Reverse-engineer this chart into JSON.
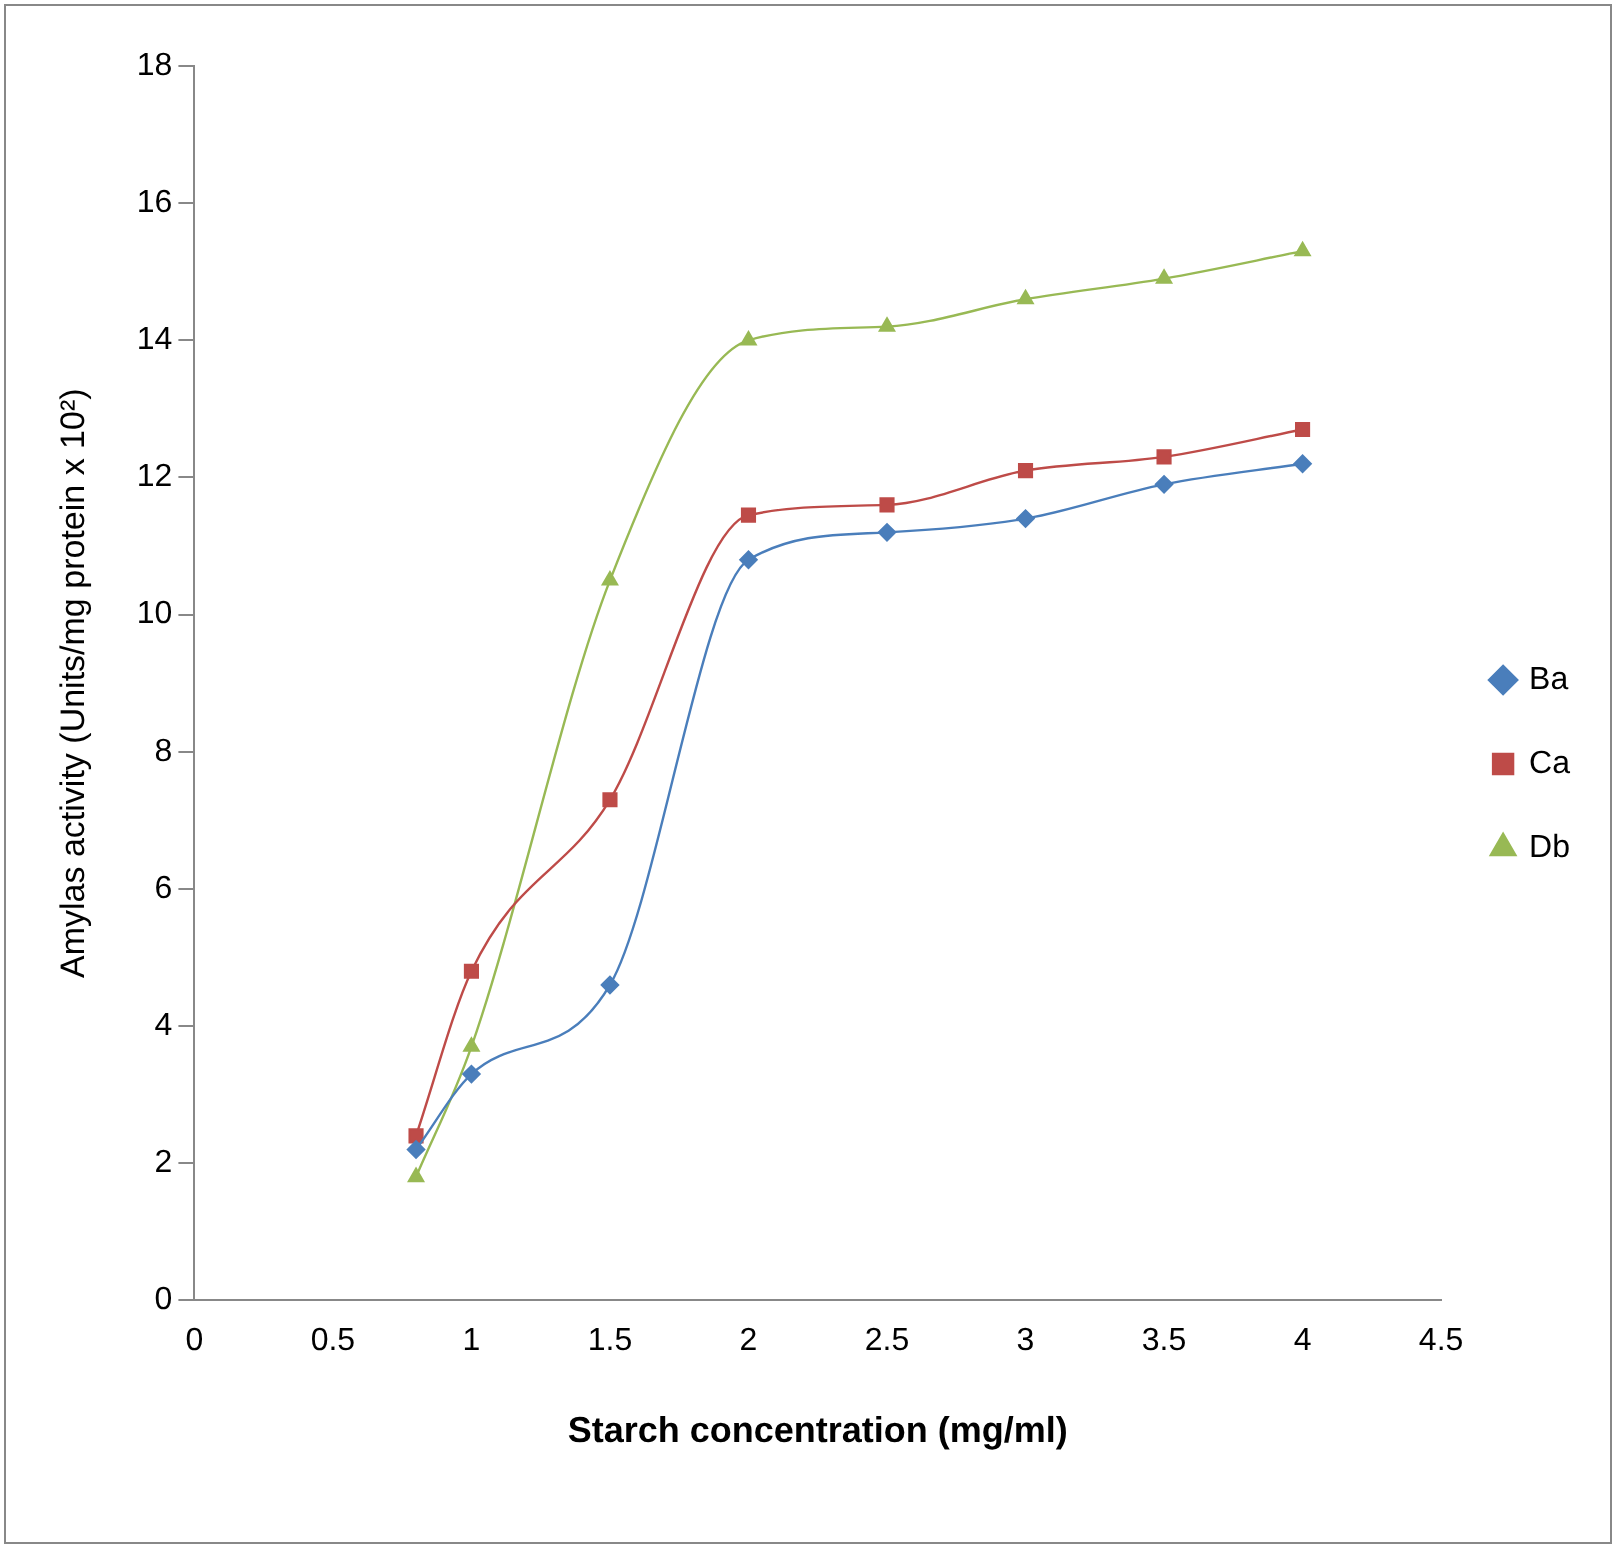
{
  "chart_data": {
    "type": "line",
    "xlabel": "Starch concentration (mg/ml)",
    "ylabel": "Amylas activity (Units/mg protein x 10²)",
    "x": [
      0.8,
      1,
      1.5,
      2,
      2.5,
      3,
      3.5,
      4
    ],
    "series": [
      {
        "name": "Ba",
        "color": "#4a7ebb",
        "marker": "diamond",
        "values": [
          2.2,
          3.3,
          4.6,
          10.8,
          11.2,
          11.4,
          11.9,
          12.2
        ]
      },
      {
        "name": "Ca",
        "color": "#be4b48",
        "marker": "square",
        "values": [
          2.4,
          4.8,
          7.3,
          11.45,
          11.6,
          12.1,
          12.3,
          12.7
        ]
      },
      {
        "name": "Db",
        "color": "#98b954",
        "marker": "triangle",
        "values": [
          1.8,
          3.7,
          10.5,
          14.0,
          14.2,
          14.6,
          14.9,
          15.3
        ]
      }
    ],
    "xlim": [
      0,
      4.5
    ],
    "xticks": [
      0,
      0.5,
      1,
      1.5,
      2,
      2.5,
      3,
      3.5,
      4,
      4.5
    ],
    "ylim": [
      0,
      18
    ],
    "yticks": [
      0,
      2,
      4,
      6,
      8,
      10,
      12,
      14,
      16,
      18
    ],
    "grid": false,
    "legend": "right"
  }
}
